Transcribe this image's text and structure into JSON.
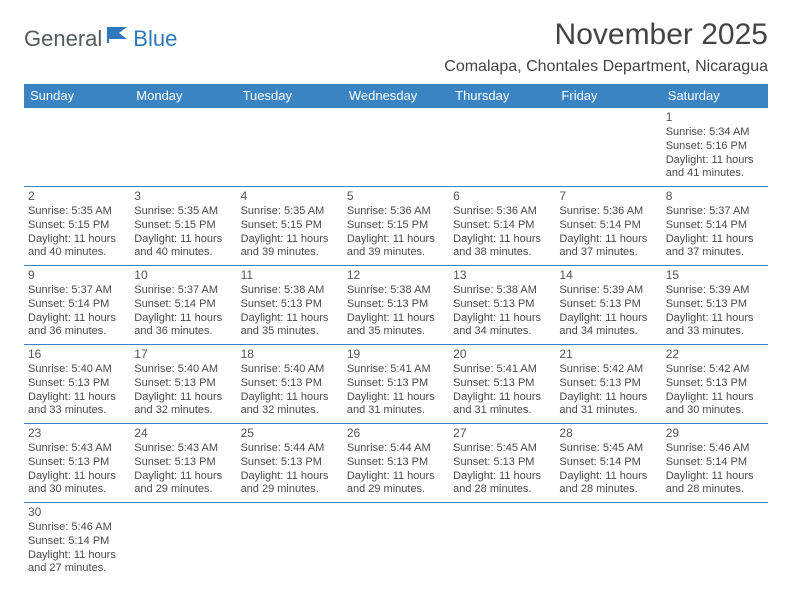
{
  "logo": {
    "text1": "General",
    "text2": "Blue"
  },
  "title": "November 2025",
  "location": "Comalapa, Chontales Department, Nicaragua",
  "colors": {
    "header_bg": "#3b84c4",
    "header_text": "#ffffff",
    "border": "#3b84c4",
    "text": "#4a4a4a",
    "title_text": "#444444",
    "logo_gray": "#555b60",
    "logo_blue": "#2f78bd",
    "background": "#ffffff"
  },
  "days_of_week": [
    "Sunday",
    "Monday",
    "Tuesday",
    "Wednesday",
    "Thursday",
    "Friday",
    "Saturday"
  ],
  "weeks": [
    [
      null,
      null,
      null,
      null,
      null,
      null,
      {
        "n": "1",
        "sr": "Sunrise: 5:34 AM",
        "ss": "Sunset: 5:16 PM",
        "d1": "Daylight: 11 hours",
        "d2": "and 41 minutes."
      }
    ],
    [
      {
        "n": "2",
        "sr": "Sunrise: 5:35 AM",
        "ss": "Sunset: 5:15 PM",
        "d1": "Daylight: 11 hours",
        "d2": "and 40 minutes."
      },
      {
        "n": "3",
        "sr": "Sunrise: 5:35 AM",
        "ss": "Sunset: 5:15 PM",
        "d1": "Daylight: 11 hours",
        "d2": "and 40 minutes."
      },
      {
        "n": "4",
        "sr": "Sunrise: 5:35 AM",
        "ss": "Sunset: 5:15 PM",
        "d1": "Daylight: 11 hours",
        "d2": "and 39 minutes."
      },
      {
        "n": "5",
        "sr": "Sunrise: 5:36 AM",
        "ss": "Sunset: 5:15 PM",
        "d1": "Daylight: 11 hours",
        "d2": "and 39 minutes."
      },
      {
        "n": "6",
        "sr": "Sunrise: 5:36 AM",
        "ss": "Sunset: 5:14 PM",
        "d1": "Daylight: 11 hours",
        "d2": "and 38 minutes."
      },
      {
        "n": "7",
        "sr": "Sunrise: 5:36 AM",
        "ss": "Sunset: 5:14 PM",
        "d1": "Daylight: 11 hours",
        "d2": "and 37 minutes."
      },
      {
        "n": "8",
        "sr": "Sunrise: 5:37 AM",
        "ss": "Sunset: 5:14 PM",
        "d1": "Daylight: 11 hours",
        "d2": "and 37 minutes."
      }
    ],
    [
      {
        "n": "9",
        "sr": "Sunrise: 5:37 AM",
        "ss": "Sunset: 5:14 PM",
        "d1": "Daylight: 11 hours",
        "d2": "and 36 minutes."
      },
      {
        "n": "10",
        "sr": "Sunrise: 5:37 AM",
        "ss": "Sunset: 5:14 PM",
        "d1": "Daylight: 11 hours",
        "d2": "and 36 minutes."
      },
      {
        "n": "11",
        "sr": "Sunrise: 5:38 AM",
        "ss": "Sunset: 5:13 PM",
        "d1": "Daylight: 11 hours",
        "d2": "and 35 minutes."
      },
      {
        "n": "12",
        "sr": "Sunrise: 5:38 AM",
        "ss": "Sunset: 5:13 PM",
        "d1": "Daylight: 11 hours",
        "d2": "and 35 minutes."
      },
      {
        "n": "13",
        "sr": "Sunrise: 5:38 AM",
        "ss": "Sunset: 5:13 PM",
        "d1": "Daylight: 11 hours",
        "d2": "and 34 minutes."
      },
      {
        "n": "14",
        "sr": "Sunrise: 5:39 AM",
        "ss": "Sunset: 5:13 PM",
        "d1": "Daylight: 11 hours",
        "d2": "and 34 minutes."
      },
      {
        "n": "15",
        "sr": "Sunrise: 5:39 AM",
        "ss": "Sunset: 5:13 PM",
        "d1": "Daylight: 11 hours",
        "d2": "and 33 minutes."
      }
    ],
    [
      {
        "n": "16",
        "sr": "Sunrise: 5:40 AM",
        "ss": "Sunset: 5:13 PM",
        "d1": "Daylight: 11 hours",
        "d2": "and 33 minutes."
      },
      {
        "n": "17",
        "sr": "Sunrise: 5:40 AM",
        "ss": "Sunset: 5:13 PM",
        "d1": "Daylight: 11 hours",
        "d2": "and 32 minutes."
      },
      {
        "n": "18",
        "sr": "Sunrise: 5:40 AM",
        "ss": "Sunset: 5:13 PM",
        "d1": "Daylight: 11 hours",
        "d2": "and 32 minutes."
      },
      {
        "n": "19",
        "sr": "Sunrise: 5:41 AM",
        "ss": "Sunset: 5:13 PM",
        "d1": "Daylight: 11 hours",
        "d2": "and 31 minutes."
      },
      {
        "n": "20",
        "sr": "Sunrise: 5:41 AM",
        "ss": "Sunset: 5:13 PM",
        "d1": "Daylight: 11 hours",
        "d2": "and 31 minutes."
      },
      {
        "n": "21",
        "sr": "Sunrise: 5:42 AM",
        "ss": "Sunset: 5:13 PM",
        "d1": "Daylight: 11 hours",
        "d2": "and 31 minutes."
      },
      {
        "n": "22",
        "sr": "Sunrise: 5:42 AM",
        "ss": "Sunset: 5:13 PM",
        "d1": "Daylight: 11 hours",
        "d2": "and 30 minutes."
      }
    ],
    [
      {
        "n": "23",
        "sr": "Sunrise: 5:43 AM",
        "ss": "Sunset: 5:13 PM",
        "d1": "Daylight: 11 hours",
        "d2": "and 30 minutes."
      },
      {
        "n": "24",
        "sr": "Sunrise: 5:43 AM",
        "ss": "Sunset: 5:13 PM",
        "d1": "Daylight: 11 hours",
        "d2": "and 29 minutes."
      },
      {
        "n": "25",
        "sr": "Sunrise: 5:44 AM",
        "ss": "Sunset: 5:13 PM",
        "d1": "Daylight: 11 hours",
        "d2": "and 29 minutes."
      },
      {
        "n": "26",
        "sr": "Sunrise: 5:44 AM",
        "ss": "Sunset: 5:13 PM",
        "d1": "Daylight: 11 hours",
        "d2": "and 29 minutes."
      },
      {
        "n": "27",
        "sr": "Sunrise: 5:45 AM",
        "ss": "Sunset: 5:13 PM",
        "d1": "Daylight: 11 hours",
        "d2": "and 28 minutes."
      },
      {
        "n": "28",
        "sr": "Sunrise: 5:45 AM",
        "ss": "Sunset: 5:14 PM",
        "d1": "Daylight: 11 hours",
        "d2": "and 28 minutes."
      },
      {
        "n": "29",
        "sr": "Sunrise: 5:46 AM",
        "ss": "Sunset: 5:14 PM",
        "d1": "Daylight: 11 hours",
        "d2": "and 28 minutes."
      }
    ],
    [
      {
        "n": "30",
        "sr": "Sunrise: 5:46 AM",
        "ss": "Sunset: 5:14 PM",
        "d1": "Daylight: 11 hours",
        "d2": "and 27 minutes."
      },
      null,
      null,
      null,
      null,
      null,
      null
    ]
  ]
}
